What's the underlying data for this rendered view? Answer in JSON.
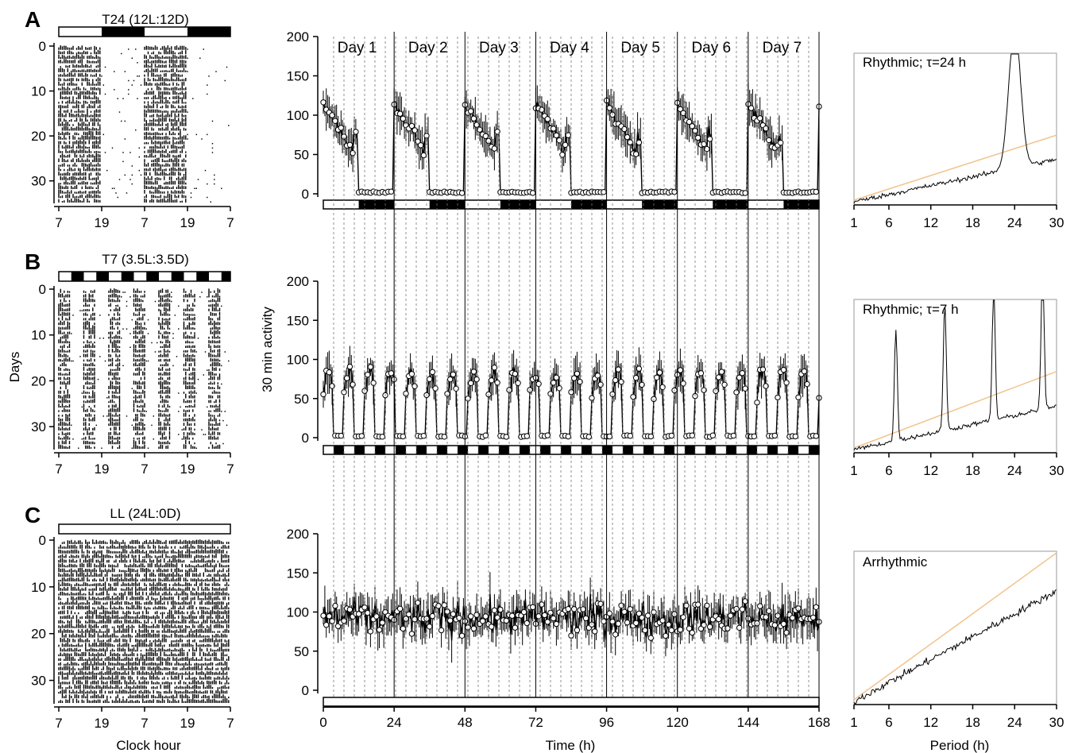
{
  "panel_labels": [
    "A",
    "B",
    "C"
  ],
  "actograms": {
    "y_label": "Days",
    "x_label": "Clock hour",
    "x_ticks": [
      "7",
      "19",
      "7",
      "19",
      "7"
    ],
    "y_ticks": [
      "0",
      "10",
      "20",
      "30"
    ],
    "rows": [
      {
        "label": "A",
        "title": "T24 (12L:12D)",
        "light_hours": 12,
        "dark_hours": 12
      },
      {
        "label": "B",
        "title": "T7 (3.5L:3.5D)",
        "light_hours": 3.5,
        "dark_hours": 3.5
      },
      {
        "label": "C",
        "title": "LL (24L:0D)",
        "light_hours": 24,
        "dark_hours": 0
      }
    ]
  },
  "profiles": {
    "y_label": "30 min activity",
    "x_label": "Time (h)",
    "x_ticks": [
      "0",
      "24",
      "48",
      "72",
      "96",
      "120",
      "144",
      "168"
    ],
    "y_ticks": [
      "0",
      "50",
      "100",
      "150",
      "200"
    ],
    "day_labels": [
      "Day 1",
      "Day 2",
      "Day 3",
      "Day 4",
      "Day 5",
      "Day 6",
      "Day 7"
    ]
  },
  "periodograms": {
    "x_label": "Period (h)",
    "x_ticks": [
      "1",
      "6",
      "12",
      "18",
      "24",
      "30"
    ],
    "rows": [
      {
        "annotation": "Rhythmic; τ=24 h",
        "peaks": [
          24
        ]
      },
      {
        "annotation": "Rhythmic; τ=7 h",
        "peaks": [
          7,
          14,
          21,
          28
        ]
      },
      {
        "annotation": "Arrhythmic",
        "peaks": []
      }
    ]
  },
  "colors": {
    "ink": "#000000",
    "threshold_line": "#f2c48d",
    "grid_dashed": "#777777"
  },
  "chart_data": [
    {
      "type": "line",
      "panel": "A",
      "title": "T24 (12L:12D)",
      "xlabel": "Time (h)",
      "ylabel": "30 min activity",
      "xlim": [
        0,
        168
      ],
      "ylim": [
        0,
        200
      ],
      "light_schedule": {
        "light_h": 12,
        "dark_h": 12
      },
      "series": [
        {
          "name": "",
          "description_profile": "activity high (~100-120) at lights-on, declining to ~50 before lights-off, ~0 in dark"
        }
      ]
    },
    {
      "type": "line",
      "panel": "B",
      "title": "T7 (3.5L:3.5D)",
      "xlabel": "Time (h)",
      "ylabel": "30 min activity",
      "xlim": [
        0,
        168
      ],
      "ylim": [
        0,
        200
      ],
      "light_schedule": {
        "light_h": 3.5,
        "dark_h": 3.5
      },
      "series": [
        {
          "name": "",
          "description_profile": "peaks ~80-90 in each 3.5 h light phase, ~0 in dark"
        }
      ]
    },
    {
      "type": "line",
      "panel": "C",
      "title": "LL (24L:0D)",
      "xlabel": "Time (h)",
      "ylabel": "30 min activity",
      "xlim": [
        0,
        168
      ],
      "ylim": [
        0,
        200
      ],
      "light_schedule": {
        "light_h": 24,
        "dark_h": 0
      },
      "series": [
        {
          "name": "",
          "description_profile": "noisy around ~90 (range ~40-160)"
        }
      ]
    },
    {
      "type": "line",
      "panel": "A",
      "xlabel": "Period (h)",
      "xlim": [
        1,
        30
      ],
      "annotation": "Rhythmic; τ=24 h",
      "peak_periods": [
        24
      ]
    },
    {
      "type": "line",
      "panel": "B",
      "xlabel": "Period (h)",
      "xlim": [
        1,
        30
      ],
      "annotation": "Rhythmic; τ=7 h",
      "peak_periods": [
        7,
        14,
        21,
        28
      ]
    },
    {
      "type": "line",
      "panel": "C",
      "xlabel": "Period (h)",
      "xlim": [
        1,
        30
      ],
      "annotation": "Arrhythmic",
      "peak_periods": []
    }
  ]
}
